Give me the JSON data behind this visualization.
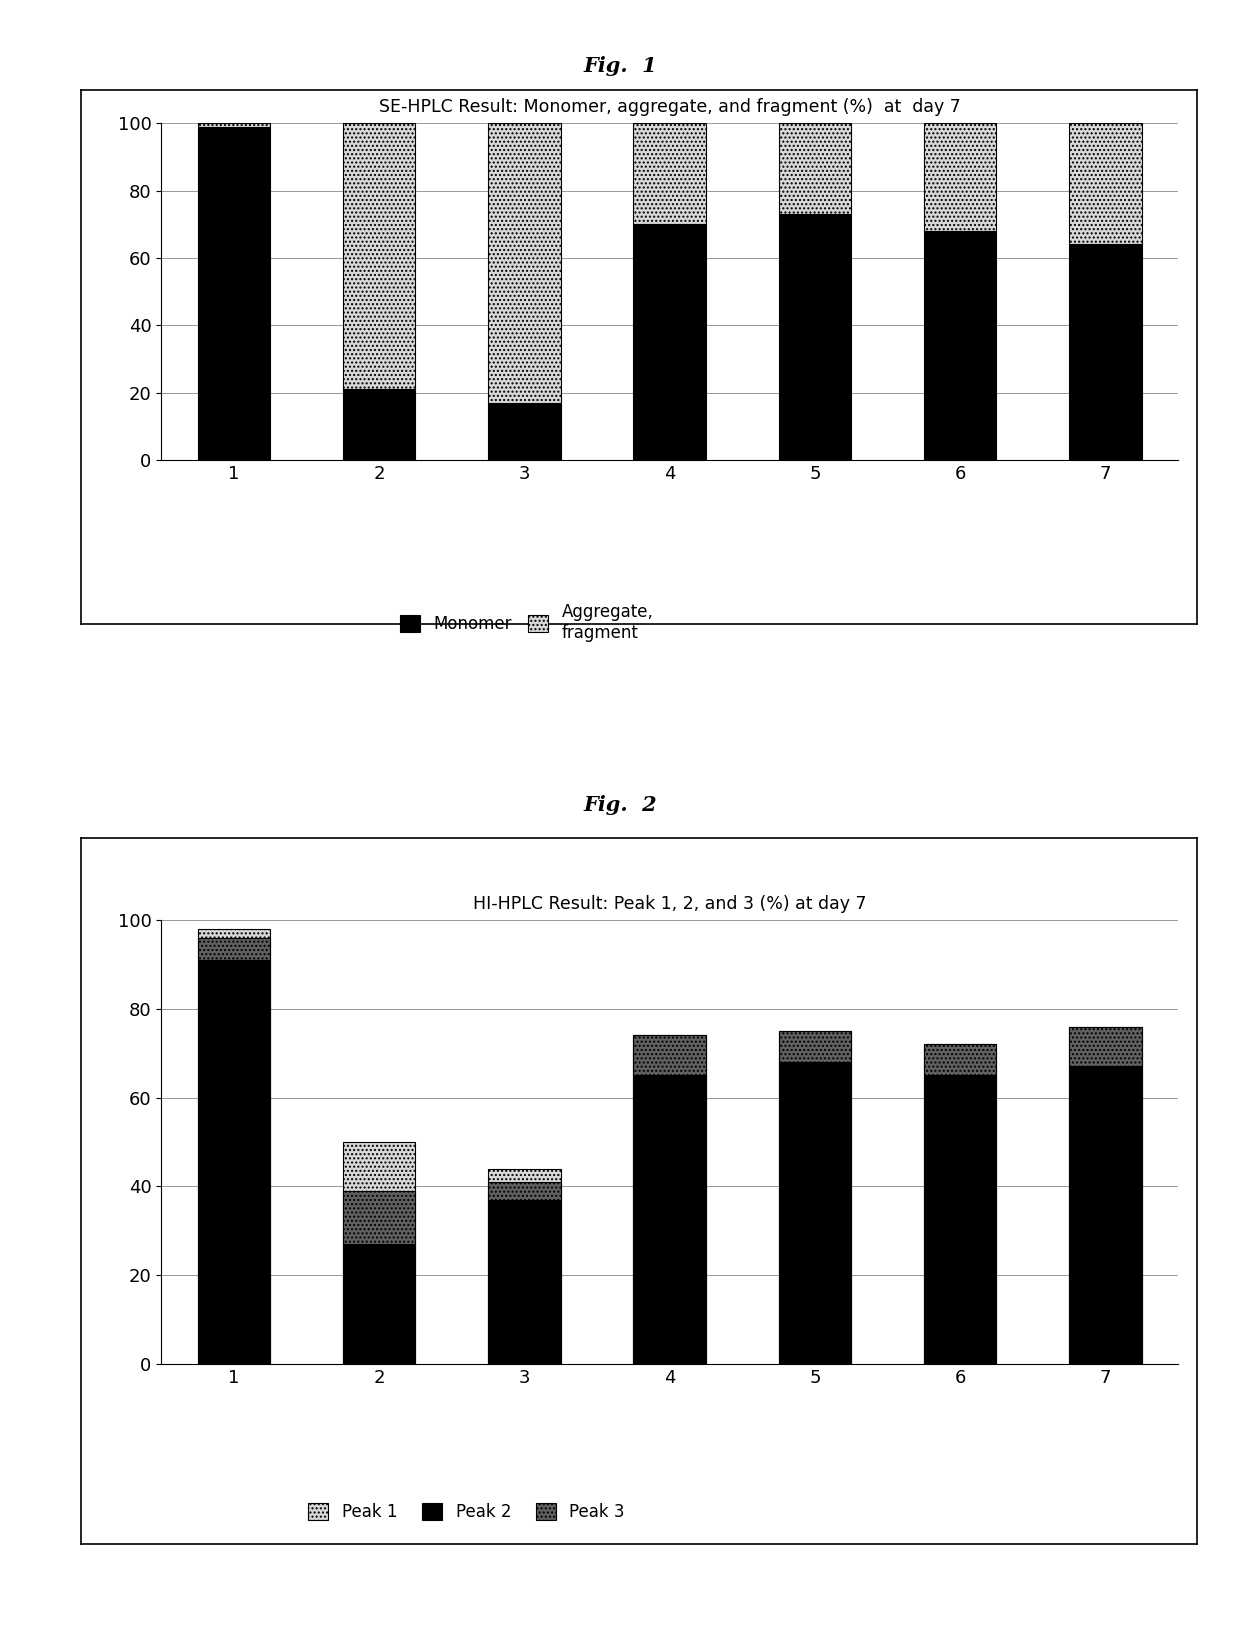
{
  "fig1": {
    "title": "SE-HPLC Result: Monomer, aggregate, and fragment (%)  at  day 7",
    "categories": [
      "1",
      "2",
      "3",
      "4",
      "5",
      "6",
      "7"
    ],
    "monomer": [
      99,
      21,
      17,
      70,
      73,
      68,
      64
    ],
    "aggregate": [
      1,
      79,
      83,
      30,
      27,
      32,
      36
    ],
    "monomer_color": "#000000",
    "aggregate_color": "#d8d8d8",
    "aggregate_hatch": "....",
    "ylim": [
      0,
      100
    ],
    "yticks": [
      0,
      20,
      40,
      60,
      80,
      100
    ],
    "legend_monomer": "Monomer",
    "legend_aggregate": "Aggregate,\nfragment"
  },
  "fig2": {
    "title": "HI-HPLC Result: Peak 1, 2, and 3 (%) at day 7",
    "categories": [
      "1",
      "2",
      "3",
      "4",
      "5",
      "6",
      "7"
    ],
    "peak1": [
      2,
      11,
      3,
      0,
      0,
      0,
      0
    ],
    "peak2": [
      91,
      27,
      37,
      65,
      68,
      65,
      67
    ],
    "peak3": [
      5,
      12,
      4,
      9,
      7,
      7,
      9
    ],
    "total": [
      98,
      50,
      44,
      74,
      75,
      72,
      76
    ],
    "peak1_color": "#d8d8d8",
    "peak1_hatch": "....",
    "peak2_color": "#000000",
    "peak3_color": "#606060",
    "peak3_hatch": "....",
    "ylim": [
      0,
      100
    ],
    "yticks": [
      0,
      20,
      40,
      60,
      80,
      100
    ],
    "legend_peak1": "Peak 1",
    "legend_peak2": "Peak 2",
    "legend_peak3": "Peak 3"
  },
  "background_color": "#ffffff",
  "fig1_label": "Fig.  1",
  "fig2_label": "Fig.  2",
  "bar_width": 0.5
}
